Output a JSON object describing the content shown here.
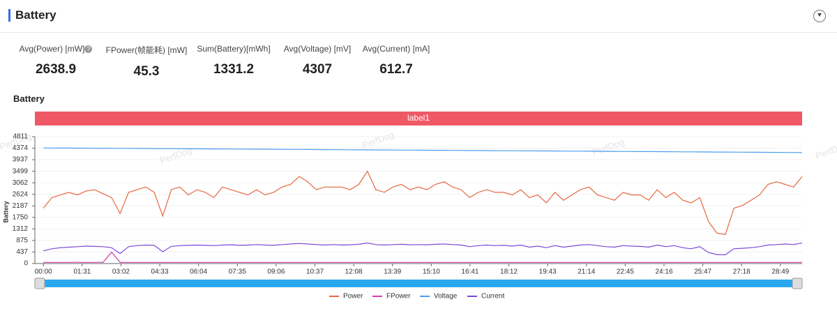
{
  "header": {
    "title": "Battery"
  },
  "metrics": [
    {
      "label": "Avg(Power) [mW]",
      "value": 2638.9
    },
    {
      "label": "FPower(帧能耗) [mW]",
      "value": 45.3
    },
    {
      "label": "Sum(Battery)[mWh]",
      "value": 1331.2
    },
    {
      "label": "Avg(Voltage) [mV]",
      "value": 4307
    },
    {
      "label": "Avg(Current) [mA]",
      "value": 612.7
    }
  ],
  "watermark": "PerfDog",
  "chart_data": {
    "type": "line",
    "title": "Battery",
    "band_label": "label1",
    "ylabel": "Battery",
    "xlim": [
      -20,
      1780
    ],
    "ylim": [
      0,
      4811
    ],
    "yticks": [
      0,
      437,
      875,
      1312,
      1750,
      2187,
      2624,
      3062,
      3499,
      3937,
      4374,
      4811
    ],
    "xticks": [
      {
        "value": 0,
        "label": "00:00"
      },
      {
        "value": 91,
        "label": "01:31"
      },
      {
        "value": 182,
        "label": "03:02"
      },
      {
        "value": 273,
        "label": "04:33"
      },
      {
        "value": 364,
        "label": "06:04"
      },
      {
        "value": 455,
        "label": "07:35"
      },
      {
        "value": 546,
        "label": "09:06"
      },
      {
        "value": 637,
        "label": "10:37"
      },
      {
        "value": 728,
        "label": "12:08"
      },
      {
        "value": 819,
        "label": "13:39"
      },
      {
        "value": 910,
        "label": "15:10"
      },
      {
        "value": 1001,
        "label": "16:41"
      },
      {
        "value": 1092,
        "label": "18:12"
      },
      {
        "value": 1183,
        "label": "19:43"
      },
      {
        "value": 1274,
        "label": "21:14"
      },
      {
        "value": 1365,
        "label": "22:45"
      },
      {
        "value": 1456,
        "label": "24:16"
      },
      {
        "value": 1547,
        "label": "25:47"
      },
      {
        "value": 1638,
        "label": "27:18"
      },
      {
        "value": 1729,
        "label": "28:49"
      }
    ],
    "grid": true,
    "x": [
      0,
      20,
      40,
      60,
      80,
      100,
      120,
      140,
      160,
      180,
      200,
      220,
      240,
      260,
      280,
      300,
      320,
      340,
      360,
      380,
      400,
      420,
      440,
      460,
      480,
      500,
      520,
      540,
      560,
      580,
      600,
      620,
      640,
      660,
      680,
      700,
      720,
      740,
      760,
      780,
      800,
      820,
      840,
      860,
      880,
      900,
      920,
      940,
      960,
      980,
      1000,
      1020,
      1040,
      1060,
      1080,
      1100,
      1120,
      1140,
      1160,
      1180,
      1200,
      1220,
      1240,
      1260,
      1280,
      1300,
      1320,
      1340,
      1360,
      1380,
      1400,
      1420,
      1440,
      1460,
      1480,
      1500,
      1520,
      1540,
      1560,
      1580,
      1600,
      1620,
      1640,
      1660,
      1680,
      1700,
      1720,
      1740,
      1760,
      1780
    ],
    "series": [
      {
        "name": "Power",
        "color": "#e4683f",
        "values": [
          2100,
          2500,
          2600,
          2700,
          2600,
          2750,
          2800,
          2650,
          2500,
          1900,
          2700,
          2800,
          2900,
          2700,
          1800,
          2800,
          2900,
          2600,
          2800,
          2700,
          2500,
          2900,
          2800,
          2700,
          2600,
          2800,
          2600,
          2700,
          2900,
          3000,
          3300,
          3100,
          2800,
          2900,
          2900,
          2900,
          2800,
          3000,
          3500,
          2800,
          2700,
          2900,
          3000,
          2800,
          2900,
          2800,
          3000,
          3100,
          2900,
          2800,
          2500,
          2700,
          2800,
          2700,
          2700,
          2600,
          2800,
          2500,
          2600,
          2300,
          2700,
          2400,
          2600,
          2800,
          2900,
          2600,
          2500,
          2400,
          2700,
          2600,
          2600,
          2400,
          2800,
          2500,
          2700,
          2400,
          2300,
          2500,
          1600,
          1150,
          1100,
          2100,
          2200,
          2400,
          2600,
          3000,
          3100,
          3000,
          2900,
          3300
        ]
      },
      {
        "name": "FPower",
        "color": "#d63aa8",
        "values": [
          45,
          44,
          46,
          45,
          47,
          45,
          44,
          46,
          430,
          45,
          44,
          46,
          45,
          44,
          46,
          45,
          44,
          46,
          45,
          44,
          46,
          45,
          44,
          46,
          45,
          44,
          46,
          45,
          44,
          46,
          45,
          44,
          46,
          45,
          44,
          46,
          45,
          44,
          46,
          45,
          44,
          46,
          45,
          44,
          46,
          45,
          44,
          46,
          45,
          44,
          46,
          45,
          44,
          46,
          45,
          44,
          46,
          45,
          44,
          46,
          45,
          44,
          46,
          45,
          44,
          46,
          45,
          44,
          46,
          45,
          44,
          46,
          45,
          44,
          46,
          45,
          44,
          46,
          45,
          44,
          46,
          45,
          44,
          46,
          45,
          44,
          46,
          45,
          44,
          46
        ]
      },
      {
        "name": "Voltage",
        "color": "#4a9df0",
        "values": [
          4380,
          4379,
          4378,
          4377,
          4375,
          4374,
          4372,
          4371,
          4369,
          4368,
          4366,
          4364,
          4362,
          4360,
          4358,
          4356,
          4354,
          4352,
          4350,
          4348,
          4346,
          4344,
          4342,
          4340,
          4338,
          4336,
          4334,
          4332,
          4330,
          4328,
          4326,
          4324,
          4322,
          4320,
          4318,
          4316,
          4314,
          4312,
          4310,
          4308,
          4306,
          4304,
          4302,
          4300,
          4298,
          4296,
          4294,
          4292,
          4290,
          4288,
          4286,
          4284,
          4282,
          4280,
          4278,
          4276,
          4274,
          4272,
          4270,
          4268,
          4266,
          4264,
          4262,
          4260,
          4258,
          4256,
          4254,
          4252,
          4250,
          4248,
          4246,
          4244,
          4242,
          4240,
          4238,
          4236,
          4234,
          4232,
          4230,
          4228,
          4226,
          4224,
          4222,
          4220,
          4218,
          4216,
          4214,
          4212,
          4210,
          4208
        ]
      },
      {
        "name": "Current",
        "color": "#7b48d8",
        "values": [
          480,
          560,
          600,
          620,
          640,
          660,
          650,
          640,
          600,
          380,
          640,
          680,
          700,
          690,
          450,
          650,
          680,
          690,
          700,
          690,
          680,
          700,
          710,
          690,
          700,
          720,
          700,
          690,
          720,
          740,
          760,
          740,
          720,
          700,
          720,
          700,
          710,
          730,
          780,
          720,
          700,
          720,
          730,
          710,
          720,
          710,
          730,
          740,
          720,
          700,
          640,
          680,
          700,
          680,
          690,
          660,
          700,
          620,
          660,
          600,
          680,
          620,
          660,
          700,
          720,
          680,
          640,
          620,
          680,
          660,
          650,
          620,
          700,
          640,
          680,
          600,
          560,
          640,
          420,
          340,
          330,
          560,
          580,
          600,
          640,
          700,
          720,
          740,
          720,
          780
        ]
      }
    ]
  }
}
